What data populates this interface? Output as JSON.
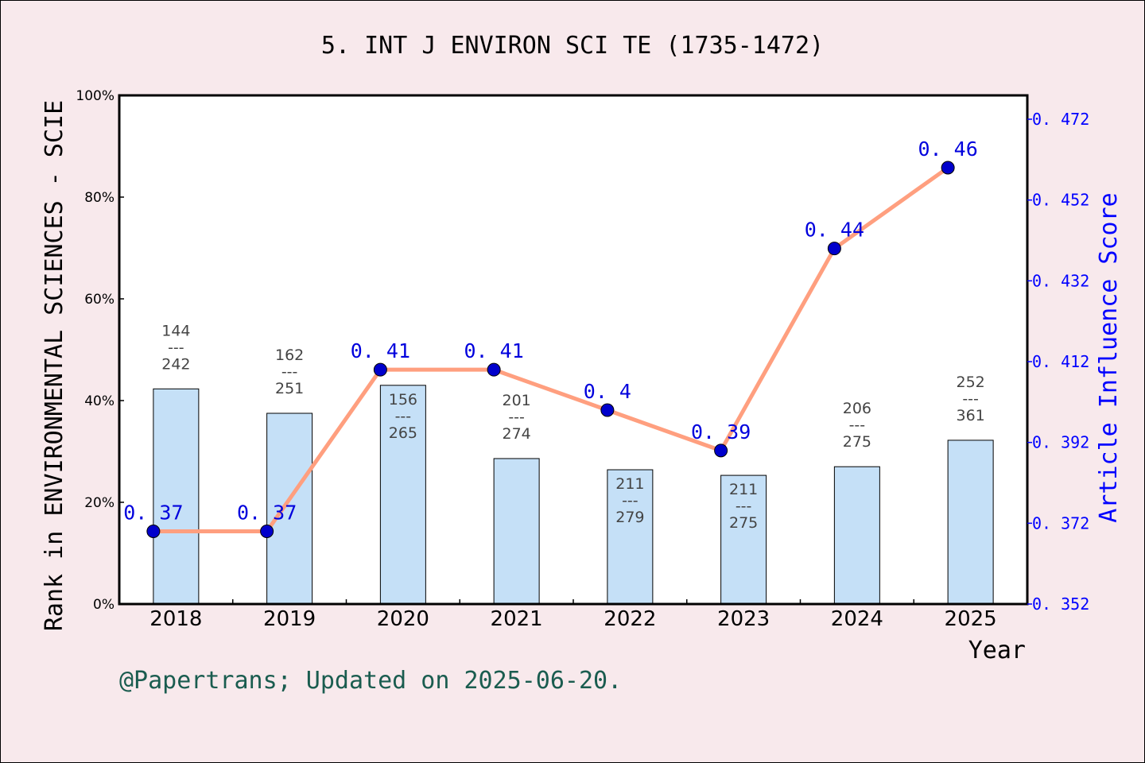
{
  "chart_data": {
    "type": "bar+line",
    "title": "5. INT J ENVIRON SCI TE (1735-1472)",
    "xlabel": "Year",
    "ylabel_left": "Rank in ENVIRONMENTAL SCIENCES - SCIE",
    "ylabel_right": "Article Influence Score",
    "categories": [
      "2018",
      "2019",
      "2020",
      "2021",
      "2022",
      "2023",
      "2024",
      "2025"
    ],
    "left_axis": {
      "range": [
        0,
        100
      ],
      "ticks": [
        "0%",
        "20%",
        "40%",
        "60%",
        "80%",
        "100%"
      ],
      "tick_values": [
        0,
        20,
        40,
        60,
        80,
        100
      ]
    },
    "right_axis": {
      "range": [
        0.352,
        0.472
      ],
      "ticks": [
        "0. 352",
        "0. 372",
        "0. 392",
        "0. 412",
        "0. 432",
        "0. 452",
        "0. 472"
      ],
      "tick_values": [
        0.352,
        0.372,
        0.392,
        0.412,
        0.432,
        0.452,
        0.472
      ]
    },
    "bars": {
      "values_percent": [
        42.3,
        37.5,
        43.0,
        28.6,
        26.4,
        25.3,
        27.0,
        32.2
      ],
      "rank": [
        "144",
        "162",
        "156",
        "201",
        "211",
        "211",
        "206",
        "252"
      ],
      "total": [
        "242",
        "251",
        "265",
        "274",
        "279",
        "275",
        "275",
        "361"
      ],
      "separator": "---",
      "color": "#c5e0f7"
    },
    "line": {
      "values": [
        0.37,
        0.37,
        0.41,
        0.41,
        0.4,
        0.39,
        0.44,
        0.46
      ],
      "labels": [
        "0. 37",
        "0. 37",
        "0. 41",
        "0. 41",
        "0. 4",
        "0. 39",
        "0. 44",
        "0. 46"
      ],
      "line_color": "#ff9f7f",
      "marker_color": "#0000cc"
    },
    "grid": false,
    "footer": "@Papertrans; Updated on 2025-06-20."
  }
}
